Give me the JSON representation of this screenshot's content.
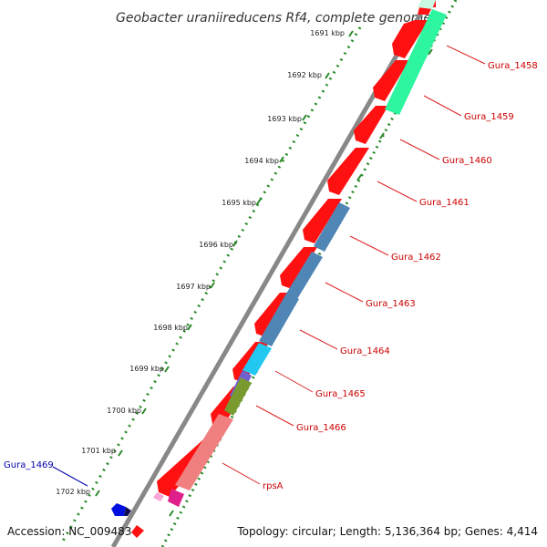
{
  "title": "Geobacter uraniireducens Rf4, complete genome",
  "footer": {
    "accession": "Accession: NC_009483",
    "topology": "Topology: circular; Length: 5,136,364 bp; Genes: 4,414"
  },
  "colors": {
    "backbone": "#888888",
    "tick": "#2a8a2a",
    "label_red": "#cc0000",
    "label_blue": "#0000aa"
  },
  "ticks": [
    "1691 kbp",
    "1692 kbp",
    "1693 kbp",
    "1694 kbp",
    "1695 kbp",
    "1696 kbp",
    "1697 kbp",
    "1698 kbp",
    "1699 kbp",
    "1700 kbp",
    "1701 kbp",
    "1702 kbp"
  ],
  "gene_labels": [
    {
      "text": "Gura_1458",
      "color": "#cc0000"
    },
    {
      "text": "Gura_1459",
      "color": "#cc0000"
    },
    {
      "text": "Gura_1460",
      "color": "#cc0000"
    },
    {
      "text": "Gura_1461",
      "color": "#cc0000"
    },
    {
      "text": "Gura_1462",
      "color": "#cc0000"
    },
    {
      "text": "Gura_1463",
      "color": "#cc0000"
    },
    {
      "text": "Gura_1464",
      "color": "#cc0000"
    },
    {
      "text": "Gura_1465",
      "color": "#cc0000"
    },
    {
      "text": "Gura_1466",
      "color": "#cc0000"
    },
    {
      "text": "rpsA",
      "color": "#cc0000"
    },
    {
      "text": "Gura_1469",
      "color": "#0000aa"
    }
  ]
}
